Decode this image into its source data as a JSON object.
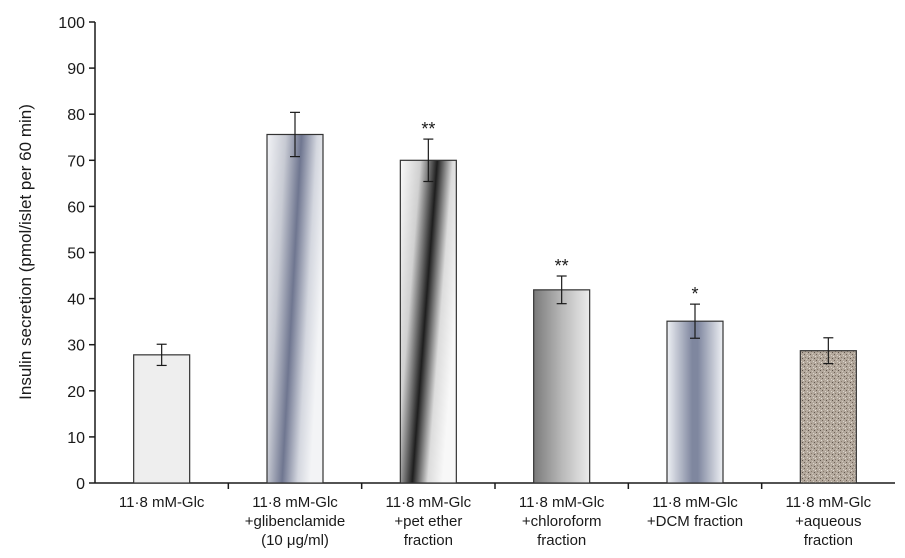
{
  "chart_data": {
    "type": "bar",
    "ylabel": "Insulin secretion (pmol/islet per 60 min)",
    "xlabel": "",
    "ylim": [
      0,
      100
    ],
    "yticks": [
      0,
      10,
      20,
      30,
      40,
      50,
      60,
      70,
      80,
      90,
      100
    ],
    "grid": false,
    "categories": [
      [
        "11·8 mM-Glc"
      ],
      [
        "11·8 mM-Glc",
        "+glibenclamide",
        "(10 μg/ml)"
      ],
      [
        "11·8 mM-Glc",
        "+pet ether",
        "fraction"
      ],
      [
        "11·8 mM-Glc",
        "+chloroform",
        "fraction"
      ],
      [
        "11·8 mM-Glc",
        "+DCM fraction"
      ],
      [
        "11·8 mM-Glc",
        "+aqueous",
        "fraction"
      ]
    ],
    "values": [
      27.8,
      75.6,
      70.0,
      41.9,
      35.1,
      28.7
    ],
    "errors": [
      2.3,
      4.8,
      4.6,
      3.0,
      3.7,
      2.8
    ],
    "significance": [
      "",
      "",
      "**",
      "**",
      "*",
      ""
    ],
    "fills": [
      "light-grey",
      "diagonal-gradient-blue-grey",
      "diagonal-gradient-black-white",
      "horizontal-gradient-grey",
      "horizontal-gradient-blue-grey",
      "speckled-brown"
    ],
    "colors": {
      "axis": "#1a1a1a",
      "bar_outline": "#333333",
      "plain_fill": "#eeeeee",
      "speckle": "#9a8c80"
    }
  }
}
